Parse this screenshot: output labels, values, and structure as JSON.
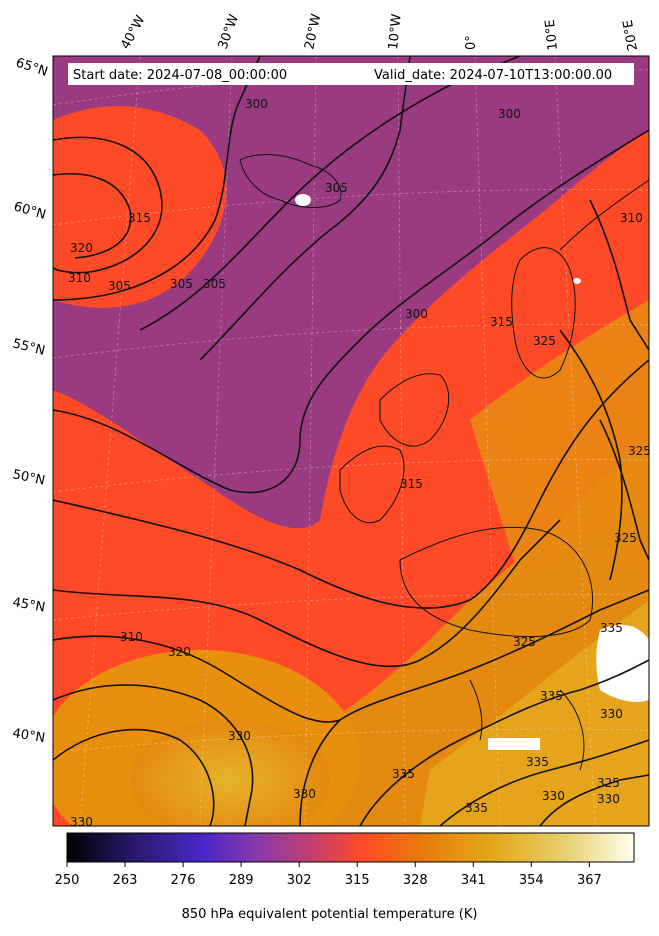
{
  "header": {
    "start_date": "Start date: 2024-07-08_00:00:00",
    "valid_date": "Valid_date: 2024-07-10T13:00:00.00"
  },
  "longitude_labels": [
    "40°W",
    "30°W",
    "20°W",
    "10°W",
    "0°",
    "10°E",
    "20°E"
  ],
  "latitude_labels": [
    "65°N",
    "60°N",
    "55°N",
    "50°N",
    "45°N",
    "40°N"
  ],
  "contour_labels": [
    "300",
    "300",
    "300",
    "305",
    "305",
    "305",
    "305",
    "310",
    "315",
    "320",
    "315",
    "325",
    "310",
    "325",
    "315",
    "325",
    "330",
    "310",
    "320",
    "325",
    "335",
    "330",
    "335",
    "330",
    "335",
    "330",
    "330",
    "325",
    "330",
    "335",
    "335"
  ],
  "colorbar": {
    "ticks": [
      "250",
      "263",
      "276",
      "289",
      "302",
      "315",
      "328",
      "341",
      "354",
      "367"
    ],
    "title": "850 hPa equivalent potential temperature (K)",
    "range": [
      250,
      377
    ],
    "colors": [
      "#000000",
      "#2a1a6e",
      "#4a26c8",
      "#8a3aa8",
      "#c8406a",
      "#ff4a28",
      "#e8780a",
      "#e4a818",
      "#e8d070",
      "#fffff0"
    ]
  },
  "field_colors": {
    "cool_air": "#9a3a80",
    "mid_air": "#ff4a28",
    "warm_air": "#e48a10",
    "hot_air": "#e6b22a",
    "land_outline": "#000000",
    "masked": "#ffffff"
  }
}
